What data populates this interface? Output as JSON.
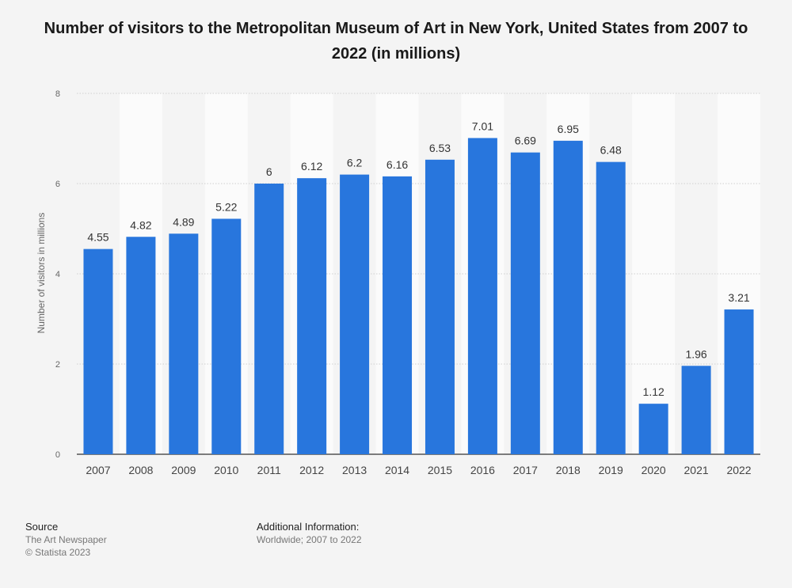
{
  "chart_data": {
    "type": "bar",
    "title": "Number of visitors to the Metropolitan Museum of Art in New York, United States from 2007 to 2022 (in millions)",
    "xlabel": "",
    "ylabel": "Number of visitors in millions",
    "ylim": [
      0,
      8
    ],
    "yticks": [
      0,
      2,
      4,
      6,
      8
    ],
    "grid": true,
    "categories": [
      "2007",
      "2008",
      "2009",
      "2010",
      "2011",
      "2012",
      "2013",
      "2014",
      "2015",
      "2016",
      "2017",
      "2018",
      "2019",
      "2020",
      "2021",
      "2022"
    ],
    "values": [
      4.55,
      4.82,
      4.89,
      5.22,
      6,
      6.12,
      6.2,
      6.16,
      6.53,
      7.01,
      6.69,
      6.95,
      6.48,
      1.12,
      1.96,
      3.21
    ],
    "value_labels": [
      "4.55",
      "4.82",
      "4.89",
      "5.22",
      "6",
      "6.12",
      "6.2",
      "6.16",
      "6.53",
      "7.01",
      "6.69",
      "6.95",
      "6.48",
      "1.12",
      "1.96",
      "3.21"
    ],
    "bar_color": "#2876dd"
  },
  "footer": {
    "source_heading": "Source",
    "source_lines": [
      "The Art Newspaper",
      "© Statista 2023"
    ],
    "info_heading": "Additional Information:",
    "info_lines": [
      "Worldwide; 2007 to 2022"
    ]
  }
}
